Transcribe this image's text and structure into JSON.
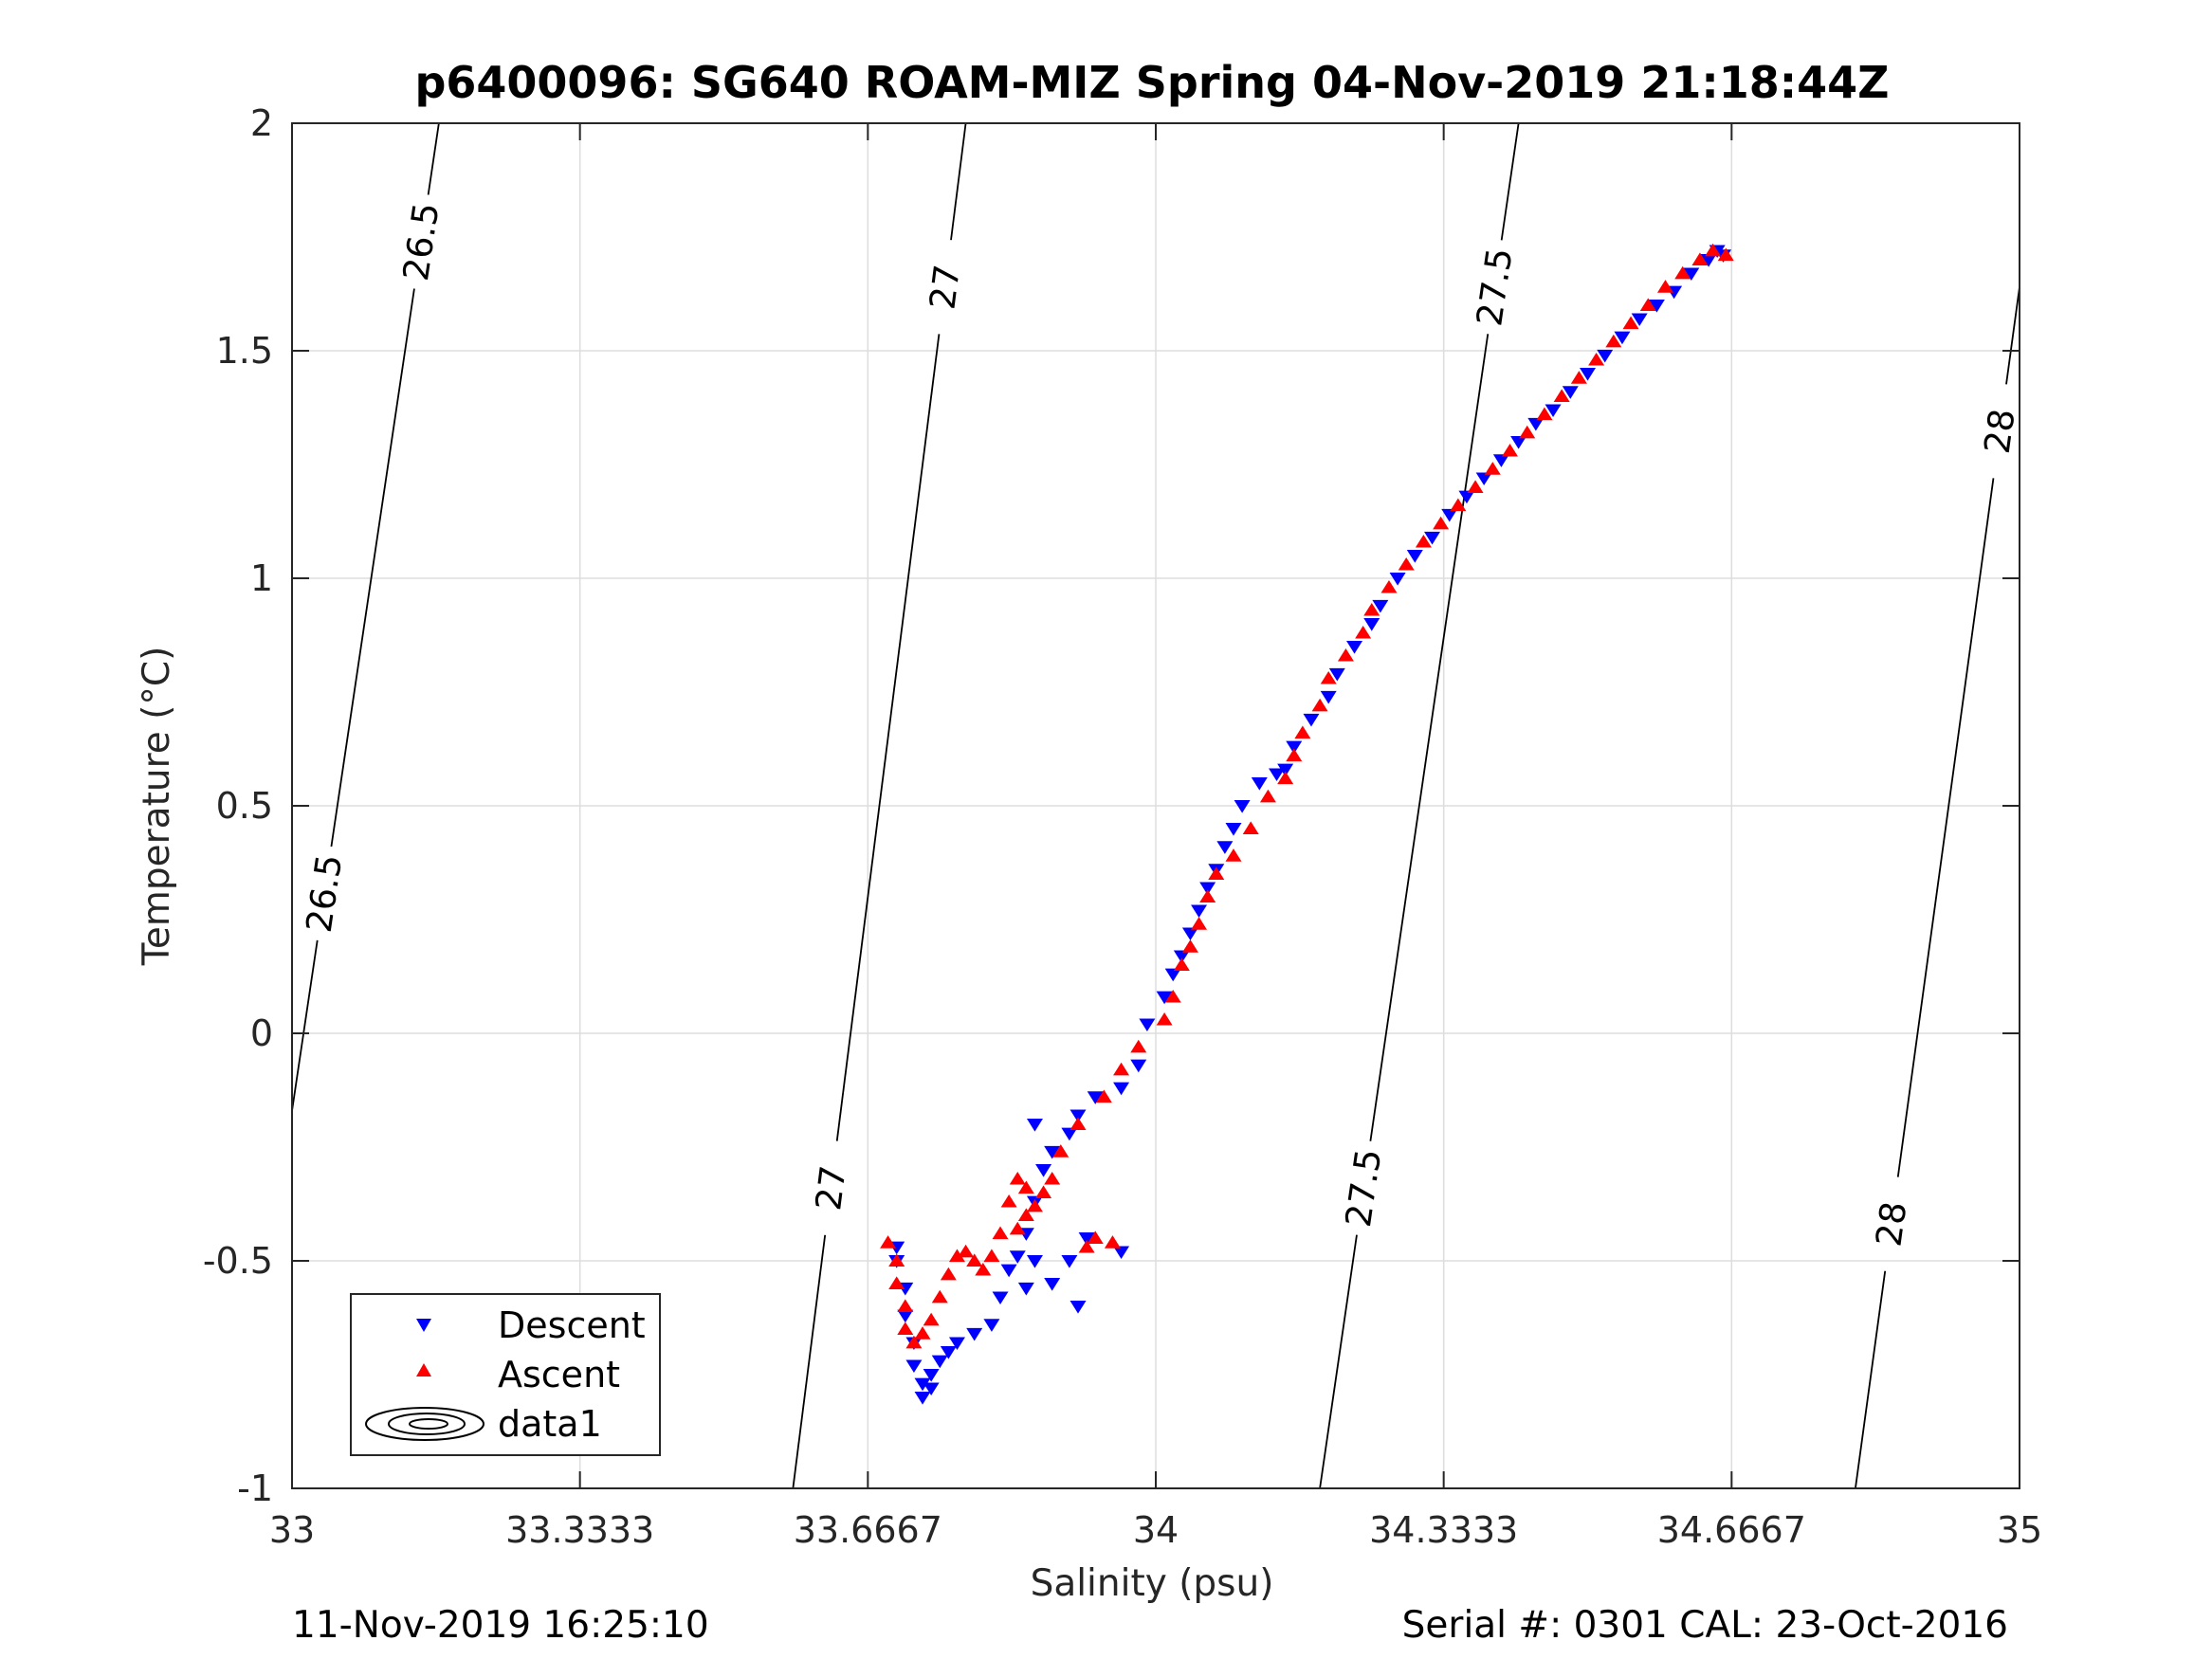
{
  "chart_data": {
    "type": "scatter",
    "title": "p6400096: SG640 ROAM-MIZ Spring 04-Nov-2019 21:18:44Z",
    "xlabel": "Salinity (psu)",
    "ylabel": "Temperature (°C)",
    "xlim": [
      33,
      35
    ],
    "ylim": [
      -1,
      2
    ],
    "x_ticks": [
      "33",
      "33.3333",
      "33.6667",
      "34",
      "34.3333",
      "34.6667",
      "35"
    ],
    "y_ticks": [
      "-1",
      "-0.5",
      "0",
      "0.5",
      "1",
      "1.5",
      "2"
    ],
    "grid": true,
    "legend_position": "bottom-left",
    "footer_left": "11-Nov-2019 16:25:10",
    "footer_right": "Serial #: 0301  CAL: 23-Oct-2016",
    "series": [
      {
        "name": "Descent",
        "color": "#0000ff",
        "marker": "triangle-down",
        "points": [
          [
            34.657,
            1.71
          ],
          [
            34.65,
            1.72
          ],
          [
            34.64,
            1.7
          ],
          [
            34.62,
            1.67
          ],
          [
            34.6,
            1.63
          ],
          [
            34.58,
            1.6
          ],
          [
            34.56,
            1.57
          ],
          [
            34.54,
            1.53
          ],
          [
            34.52,
            1.49
          ],
          [
            34.5,
            1.45
          ],
          [
            34.48,
            1.41
          ],
          [
            34.46,
            1.37
          ],
          [
            34.44,
            1.34
          ],
          [
            34.42,
            1.3
          ],
          [
            34.4,
            1.26
          ],
          [
            34.38,
            1.22
          ],
          [
            34.36,
            1.18
          ],
          [
            34.34,
            1.14
          ],
          [
            34.32,
            1.09
          ],
          [
            34.3,
            1.05
          ],
          [
            34.28,
            1.0
          ],
          [
            34.26,
            0.94
          ],
          [
            34.25,
            0.9
          ],
          [
            34.23,
            0.85
          ],
          [
            34.21,
            0.79
          ],
          [
            34.2,
            0.74
          ],
          [
            34.18,
            0.69
          ],
          [
            34.16,
            0.63
          ],
          [
            34.15,
            0.58
          ],
          [
            34.14,
            0.57
          ],
          [
            34.12,
            0.55
          ],
          [
            34.1,
            0.5
          ],
          [
            34.09,
            0.45
          ],
          [
            34.08,
            0.41
          ],
          [
            34.07,
            0.36
          ],
          [
            34.06,
            0.32
          ],
          [
            34.05,
            0.27
          ],
          [
            34.04,
            0.22
          ],
          [
            34.03,
            0.17
          ],
          [
            34.02,
            0.13
          ],
          [
            34.01,
            0.08
          ],
          [
            33.99,
            0.02
          ],
          [
            33.98,
            -0.07
          ],
          [
            33.96,
            -0.12
          ],
          [
            33.93,
            -0.14
          ],
          [
            33.91,
            -0.18
          ],
          [
            33.9,
            -0.22
          ],
          [
            33.88,
            -0.26
          ],
          [
            33.87,
            -0.3
          ],
          [
            33.86,
            -0.37
          ],
          [
            33.85,
            -0.44
          ],
          [
            33.84,
            -0.49
          ],
          [
            33.83,
            -0.52
          ],
          [
            33.85,
            -0.56
          ],
          [
            33.91,
            -0.6
          ],
          [
            33.82,
            -0.58
          ],
          [
            33.86,
            -0.2
          ],
          [
            33.9,
            -0.5
          ],
          [
            33.96,
            -0.48
          ],
          [
            33.92,
            -0.45
          ],
          [
            33.88,
            -0.55
          ],
          [
            33.86,
            -0.5
          ],
          [
            33.81,
            -0.64
          ],
          [
            33.79,
            -0.66
          ],
          [
            33.77,
            -0.68
          ],
          [
            33.76,
            -0.7
          ],
          [
            33.75,
            -0.72
          ],
          [
            33.74,
            -0.75
          ],
          [
            33.74,
            -0.78
          ],
          [
            33.73,
            -0.8
          ],
          [
            33.73,
            -0.77
          ],
          [
            33.72,
            -0.73
          ],
          [
            33.72,
            -0.68
          ],
          [
            33.71,
            -0.62
          ],
          [
            33.71,
            -0.56
          ],
          [
            33.7,
            -0.5
          ],
          [
            33.7,
            -0.47
          ]
        ]
      },
      {
        "name": "Ascent",
        "color": "#ff0000",
        "marker": "triangle-up",
        "points": [
          [
            34.66,
            1.71
          ],
          [
            34.645,
            1.72
          ],
          [
            34.63,
            1.7
          ],
          [
            34.61,
            1.67
          ],
          [
            34.59,
            1.64
          ],
          [
            34.57,
            1.6
          ],
          [
            34.55,
            1.56
          ],
          [
            34.53,
            1.52
          ],
          [
            34.51,
            1.48
          ],
          [
            34.49,
            1.44
          ],
          [
            34.47,
            1.4
          ],
          [
            34.45,
            1.36
          ],
          [
            34.43,
            1.32
          ],
          [
            34.41,
            1.28
          ],
          [
            34.39,
            1.24
          ],
          [
            34.37,
            1.2
          ],
          [
            34.35,
            1.16
          ],
          [
            34.33,
            1.12
          ],
          [
            34.31,
            1.08
          ],
          [
            34.29,
            1.03
          ],
          [
            34.27,
            0.98
          ],
          [
            34.25,
            0.93
          ],
          [
            34.24,
            0.88
          ],
          [
            34.22,
            0.83
          ],
          [
            34.2,
            0.78
          ],
          [
            34.19,
            0.72
          ],
          [
            34.17,
            0.66
          ],
          [
            34.16,
            0.61
          ],
          [
            34.15,
            0.56
          ],
          [
            34.13,
            0.52
          ],
          [
            34.11,
            0.45
          ],
          [
            34.09,
            0.39
          ],
          [
            34.07,
            0.35
          ],
          [
            34.06,
            0.3
          ],
          [
            34.05,
            0.24
          ],
          [
            34.04,
            0.19
          ],
          [
            34.03,
            0.15
          ],
          [
            34.02,
            0.08
          ],
          [
            34.01,
            0.03
          ],
          [
            33.98,
            -0.03
          ],
          [
            33.96,
            -0.08
          ],
          [
            33.94,
            -0.14
          ],
          [
            33.91,
            -0.2
          ],
          [
            33.89,
            -0.26
          ],
          [
            33.88,
            -0.32
          ],
          [
            33.87,
            -0.35
          ],
          [
            33.86,
            -0.38
          ],
          [
            33.85,
            -0.4
          ],
          [
            33.84,
            -0.43
          ],
          [
            33.85,
            -0.34
          ],
          [
            33.84,
            -0.32
          ],
          [
            33.83,
            -0.37
          ],
          [
            33.82,
            -0.44
          ],
          [
            33.81,
            -0.49
          ],
          [
            33.8,
            -0.52
          ],
          [
            33.79,
            -0.5
          ],
          [
            33.78,
            -0.48
          ],
          [
            33.77,
            -0.49
          ],
          [
            33.76,
            -0.53
          ],
          [
            33.75,
            -0.58
          ],
          [
            33.74,
            -0.63
          ],
          [
            33.73,
            -0.66
          ],
          [
            33.72,
            -0.68
          ],
          [
            33.71,
            -0.65
          ],
          [
            33.71,
            -0.6
          ],
          [
            33.7,
            -0.55
          ],
          [
            33.7,
            -0.5
          ],
          [
            33.69,
            -0.46
          ],
          [
            33.93,
            -0.45
          ],
          [
            33.95,
            -0.46
          ],
          [
            33.92,
            -0.47
          ]
        ]
      },
      {
        "name": "data1",
        "type": "contour",
        "color": "#000000",
        "levels": [
          {
            "value": "26.5",
            "line": [
              [
                33.0,
                -0.17
              ],
              [
                33.17,
                2.0
              ]
            ]
          },
          {
            "value": "27",
            "line": [
              [
                33.58,
                -1.0
              ],
              [
                33.78,
                2.0
              ]
            ]
          },
          {
            "value": "27.5",
            "line": [
              [
                34.19,
                -1.0
              ],
              [
                34.42,
                2.0
              ]
            ]
          },
          {
            "value": "28",
            "line": [
              [
                34.81,
                -1.0
              ],
              [
                35.0,
                1.64
              ]
            ]
          }
        ]
      }
    ]
  }
}
